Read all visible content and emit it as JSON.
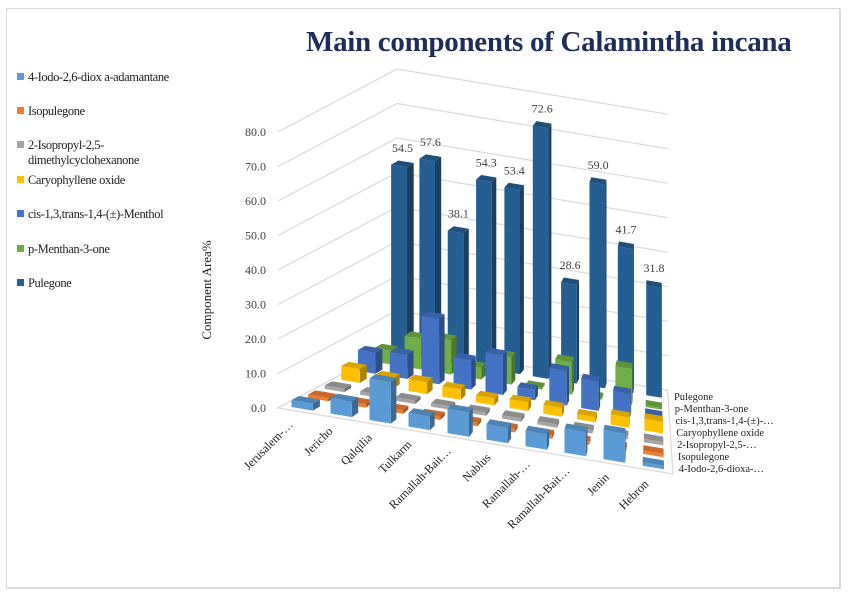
{
  "chart_data": {
    "type": "bar",
    "variant": "3d-column",
    "title": "Main components of Calamintha incana",
    "xlabel": "",
    "ylabel": "Component Area%",
    "ylim": [
      0,
      80
    ],
    "yticks": [
      "0.0",
      "10.0",
      "20.0",
      "30.0",
      "40.0",
      "50.0",
      "60.0",
      "70.0",
      "80.0"
    ],
    "grid": true,
    "legend_position": "left",
    "categories": [
      "Jerusalem-…",
      "Jericho",
      "Qalqilia",
      "Tulkarm",
      "Ramallah-Bait…",
      "Nablus",
      "Ramallah-…",
      "Ramallah-Bait…",
      "Jenin",
      "Hebron"
    ],
    "series": [
      {
        "name": "4-Iodo-2,6-dioxa-adamantane",
        "axis_label": "4-Iodo-2,6-dioxa-…",
        "color": "#5b9bd5",
        "values": [
          2.0,
          4.5,
          12.0,
          4.0,
          7.0,
          4.5,
          4.5,
          7.0,
          8.5,
          1.0
        ]
      },
      {
        "name": "Isopulegone",
        "axis_label": "Isopulegone",
        "color": "#ed7d31",
        "values": [
          1.0,
          1.0,
          1.0,
          1.0,
          1.0,
          1.0,
          1.0,
          1.0,
          1.0,
          1.0
        ]
      },
      {
        "name": "2-Isopropyl-2,5-dimethylcyclohexanone",
        "axis_label": "2-Isopropyl-2,5-…",
        "color": "#a5a5a5",
        "values": [
          1.0,
          1.0,
          1.0,
          1.0,
          1.0,
          1.0,
          1.0,
          1.0,
          1.0,
          1.0
        ]
      },
      {
        "name": "Caryophyllene oxide",
        "axis_label": "Caryophyllene oxide",
        "color": "#ffc000",
        "values": [
          4.0,
          3.0,
          3.5,
          3.0,
          2.0,
          2.5,
          2.5,
          1.5,
          3.0,
          3.5
        ]
      },
      {
        "name": "cis-1,3,trans-1,4-(±)-Menthol",
        "axis_label": "cis-1,3,trans-1,4-(±)-…",
        "color": "#4472c4",
        "values": [
          6.0,
          7.0,
          19.0,
          8.5,
          11.5,
          3.0,
          10.0,
          8.5,
          6.5,
          1.5
        ]
      },
      {
        "name": "p-Menthan-3-one",
        "axis_label": "p-Menthan-3-one",
        "color": "#70ad47",
        "values": [
          4.0,
          9.0,
          10.0,
          3.5,
          8.0,
          0.5,
          9.5,
          0.5,
          10.5,
          0.5
        ]
      },
      {
        "name": "Pulegone",
        "axis_label": "Pulegone",
        "color": "#255e91",
        "values": [
          54.5,
          57.6,
          38.1,
          54.3,
          53.4,
          72.6,
          28.6,
          59.0,
          41.7,
          31.8
        ],
        "data_labels": [
          "54.5",
          "57.6",
          "38.1",
          "54.3",
          "53.4",
          "72.6",
          "28.6",
          "59.0",
          "41.7",
          "31.8"
        ]
      }
    ]
  },
  "legend": {
    "items": [
      {
        "label": "4-Iodo-2,6-diox a-adamantane",
        "color": "#5b9bd5"
      },
      {
        "label": "Isopulegone",
        "color": "#ed7d31"
      },
      {
        "label": "2-Isopropyl-2,5-",
        "label2": "dimethylcyclohexanone",
        "color": "#a5a5a5"
      },
      {
        "label": "Caryophyllene oxide",
        "color": "#ffc000"
      },
      {
        "label": "cis-1,3,trans-1,4-(±)-Menthol",
        "color": "#4472c4"
      },
      {
        "label": "p-Menthan-3-one",
        "color": "#70ad47"
      },
      {
        "label": "Pulegone",
        "color": "#255e91"
      }
    ]
  }
}
